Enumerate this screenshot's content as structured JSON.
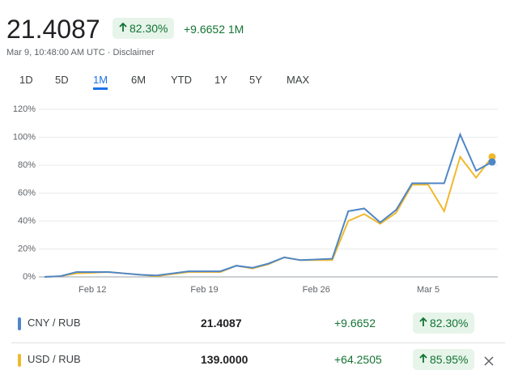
{
  "header": {
    "price": "21.4087",
    "change_pct": "82.30%",
    "change": "+9.6652",
    "period": "1M",
    "timestamp": "Mar 9, 10:48:00 AM UTC",
    "disclaimer": "Disclaimer"
  },
  "tabs": {
    "items": [
      "1D",
      "5D",
      "1M",
      "6M",
      "YTD",
      "1Y",
      "5Y",
      "MAX"
    ],
    "selected": 2
  },
  "chart_data": {
    "type": "line",
    "categories": [
      null,
      null,
      null,
      "Feb 12",
      null,
      null,
      null,
      null,
      null,
      null,
      "Feb 19",
      null,
      null,
      null,
      null,
      null,
      null,
      "Feb 26",
      null,
      null,
      null,
      null,
      null,
      null,
      "Mar 5",
      null,
      null,
      null,
      null
    ],
    "series": [
      {
        "name": "CNY / RUB",
        "color": "#4f86c6",
        "values": [
          0,
          0.5,
          3.5,
          3.5,
          3.5,
          2.5,
          1.5,
          1,
          2.5,
          4,
          4,
          4,
          8,
          6.5,
          9.5,
          14,
          12,
          12.5,
          13,
          47,
          49,
          39,
          48,
          67,
          67,
          67,
          102,
          76,
          82.3
        ]
      },
      {
        "name": "USD / RUB",
        "color": "#f0b92c",
        "values": [
          0,
          0.5,
          2.5,
          3,
          3.5,
          2.5,
          1.5,
          0.5,
          2,
          3.5,
          3.5,
          3.5,
          8,
          6,
          9,
          14,
          12,
          12,
          12,
          40,
          45,
          38,
          46,
          66,
          66,
          47,
          86,
          71,
          85.95
        ]
      }
    ],
    "ylim": [
      0,
      120
    ],
    "yticks": [
      {
        "value": 0,
        "label": "0%"
      },
      {
        "value": 20,
        "label": "20%"
      },
      {
        "value": 40,
        "label": "40%"
      },
      {
        "value": 60,
        "label": "60%"
      },
      {
        "value": 80,
        "label": "80%"
      },
      {
        "value": 100,
        "label": "100%"
      },
      {
        "value": 120,
        "label": "120%"
      }
    ],
    "grid": true
  },
  "table": {
    "rows": [
      [
        "CNY / RUB",
        "21.4087",
        "+9.6652",
        "82.30%"
      ],
      [
        "USD / RUB",
        "139.0000",
        "+64.2505",
        "85.95%"
      ]
    ]
  }
}
